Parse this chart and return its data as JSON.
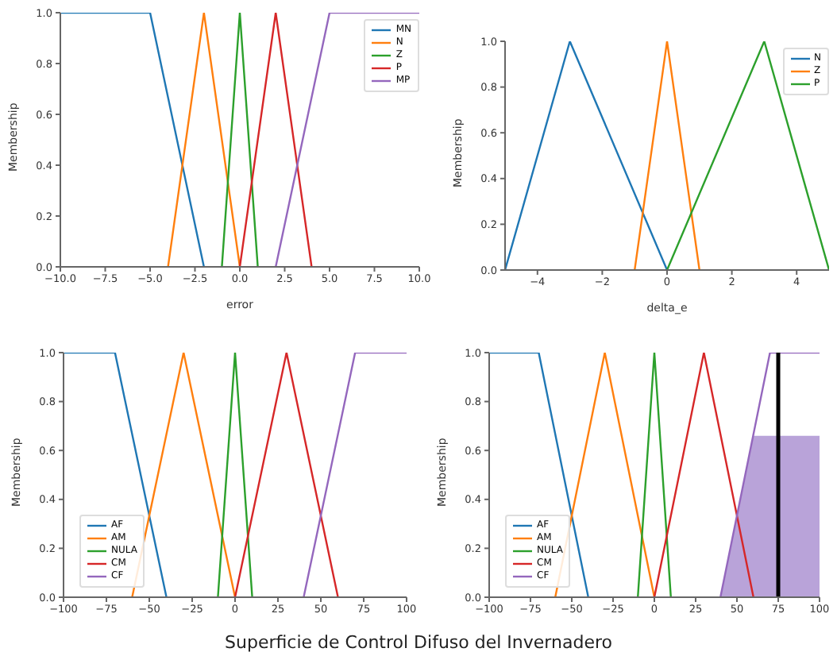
{
  "chart_data": [
    {
      "type": "line",
      "xlabel": "error",
      "ylabel": "Membership",
      "xlim": [
        -10,
        10
      ],
      "ylim": [
        0,
        1
      ],
      "xticks": [
        {
          "value": -10,
          "label": "−10.0"
        },
        {
          "value": -7.5,
          "label": "−7.5"
        },
        {
          "value": -5,
          "label": "−5.0"
        },
        {
          "value": -2.5,
          "label": "−2.5"
        },
        {
          "value": 0,
          "label": "0.0"
        },
        {
          "value": 2.5,
          "label": "2.5"
        },
        {
          "value": 5,
          "label": "5.0"
        },
        {
          "value": 7.5,
          "label": "7.5"
        },
        {
          "value": 10,
          "label": "10.0"
        }
      ],
      "yticks": [
        {
          "value": 0,
          "label": "0.0"
        },
        {
          "value": 0.2,
          "label": "0.2"
        },
        {
          "value": 0.4,
          "label": "0.4"
        },
        {
          "value": 0.6,
          "label": "0.6"
        },
        {
          "value": 0.8,
          "label": "0.8"
        },
        {
          "value": 1,
          "label": "1.0"
        }
      ],
      "grid": false,
      "legend": "top right",
      "marker": "none",
      "line_style": "solid",
      "series": [
        {
          "name": "MN",
          "color": "#1f77b4",
          "x": [
            -10,
            -5,
            -2
          ],
          "values": [
            1,
            1,
            0
          ]
        },
        {
          "name": "N",
          "color": "#ff7f0e",
          "x": [
            -4,
            -2,
            0
          ],
          "values": [
            0,
            1,
            0
          ]
        },
        {
          "name": "Z",
          "color": "#2ca02c",
          "x": [
            -1,
            0,
            1
          ],
          "values": [
            0,
            1,
            0
          ]
        },
        {
          "name": "P",
          "color": "#d62728",
          "x": [
            0,
            2,
            4
          ],
          "values": [
            0,
            1,
            0
          ]
        },
        {
          "name": "MP",
          "color": "#9467bd",
          "x": [
            2,
            5,
            10
          ],
          "values": [
            0,
            1,
            1
          ]
        }
      ]
    },
    {
      "type": "line",
      "xlabel": "delta_e",
      "ylabel": "Membership",
      "xlim": [
        -5,
        5
      ],
      "ylim": [
        0,
        1
      ],
      "xticks": [
        {
          "value": -4,
          "label": "−4"
        },
        {
          "value": -2,
          "label": "−2"
        },
        0,
        2,
        4
      ],
      "yticks": [
        {
          "value": 0,
          "label": "0.0"
        },
        {
          "value": 0.2,
          "label": "0.2"
        },
        {
          "value": 0.4,
          "label": "0.4"
        },
        {
          "value": 0.6,
          "label": "0.6"
        },
        {
          "value": 0.8,
          "label": "0.8"
        },
        {
          "value": 1,
          "label": "1.0"
        }
      ],
      "grid": false,
      "legend": "top right",
      "marker": "none",
      "line_style": "solid",
      "series": [
        {
          "name": "N",
          "color": "#1f77b4",
          "x": [
            -5,
            -3,
            0
          ],
          "values": [
            0,
            1,
            0
          ]
        },
        {
          "name": "Z",
          "color": "#ff7f0e",
          "x": [
            -1,
            0,
            1
          ],
          "values": [
            0,
            1,
            0
          ]
        },
        {
          "name": "P",
          "color": "#2ca02c",
          "x": [
            0,
            3,
            5
          ],
          "values": [
            0,
            1,
            0
          ]
        }
      ]
    },
    {
      "type": "line",
      "ylabel": "Membership",
      "xlim": [
        -100,
        100
      ],
      "ylim": [
        0,
        1
      ],
      "xticks": [
        {
          "value": -100,
          "label": "−100"
        },
        {
          "value": -75,
          "label": "−75"
        },
        {
          "value": -50,
          "label": "−50"
        },
        {
          "value": -25,
          "label": "−25"
        },
        0,
        25,
        50,
        75,
        100
      ],
      "yticks": [
        {
          "value": 0,
          "label": "0.0"
        },
        {
          "value": 0.2,
          "label": "0.2"
        },
        {
          "value": 0.4,
          "label": "0.4"
        },
        {
          "value": 0.6,
          "label": "0.6"
        },
        {
          "value": 0.8,
          "label": "0.8"
        },
        {
          "value": 1,
          "label": "1.0"
        }
      ],
      "grid": false,
      "legend": "bottom left",
      "marker": "none",
      "line_style": "solid",
      "series": [
        {
          "name": "AF",
          "color": "#1f77b4",
          "x": [
            -100,
            -70,
            -40
          ],
          "values": [
            1,
            1,
            0
          ]
        },
        {
          "name": "AM",
          "color": "#ff7f0e",
          "x": [
            -60,
            -30,
            0
          ],
          "values": [
            0,
            1,
            0
          ]
        },
        {
          "name": "NULA",
          "color": "#2ca02c",
          "x": [
            -10,
            0,
            10
          ],
          "values": [
            0,
            1,
            0
          ]
        },
        {
          "name": "CM",
          "color": "#d62728",
          "x": [
            0,
            30,
            60
          ],
          "values": [
            0,
            1,
            0
          ]
        },
        {
          "name": "CF",
          "color": "#9467bd",
          "x": [
            40,
            70,
            100
          ],
          "values": [
            0,
            1,
            1
          ]
        }
      ]
    },
    {
      "type": "line",
      "ylabel": "Membership",
      "xlim": [
        -100,
        100
      ],
      "ylim": [
        0,
        1
      ],
      "xticks": [
        {
          "value": -100,
          "label": "−100"
        },
        {
          "value": -75,
          "label": "−75"
        },
        {
          "value": -50,
          "label": "−50"
        },
        {
          "value": -25,
          "label": "−25"
        },
        0,
        25,
        50,
        75,
        100
      ],
      "yticks": [
        {
          "value": 0,
          "label": "0.0"
        },
        {
          "value": 0.2,
          "label": "0.2"
        },
        {
          "value": 0.4,
          "label": "0.4"
        },
        {
          "value": 0.6,
          "label": "0.6"
        },
        {
          "value": 0.8,
          "label": "0.8"
        },
        {
          "value": 1,
          "label": "1.0"
        }
      ],
      "grid": false,
      "legend": "bottom left",
      "marker": "none",
      "line_style": "solid",
      "annotations": [
        "Superficie de Control Difuso del Invernadero"
      ],
      "ref_lines": [
        {
          "axis": "x",
          "value": 75,
          "color": "#000000"
        }
      ],
      "series": [
        {
          "name": "AF",
          "color": "#1f77b4",
          "x": [
            -100,
            -70,
            -40
          ],
          "values": [
            1,
            1,
            0
          ]
        },
        {
          "name": "AM",
          "color": "#ff7f0e",
          "x": [
            -60,
            -30,
            0
          ],
          "values": [
            0,
            1,
            0
          ]
        },
        {
          "name": "NULA",
          "color": "#2ca02c",
          "x": [
            -10,
            0,
            10
          ],
          "values": [
            0,
            1,
            0
          ]
        },
        {
          "name": "CM",
          "color": "#d62728",
          "x": [
            0,
            30,
            60
          ],
          "values": [
            0,
            1,
            0
          ]
        },
        {
          "name": "CF",
          "color": "#9467bd",
          "x": [
            40,
            70,
            100
          ],
          "values": [
            0,
            1,
            1
          ]
        },
        {
          "type": "area",
          "color": "#b9a3d9",
          "x": [
            40,
            60,
            100
          ],
          "values": [
            0,
            0.66,
            0.66
          ]
        }
      ]
    }
  ]
}
